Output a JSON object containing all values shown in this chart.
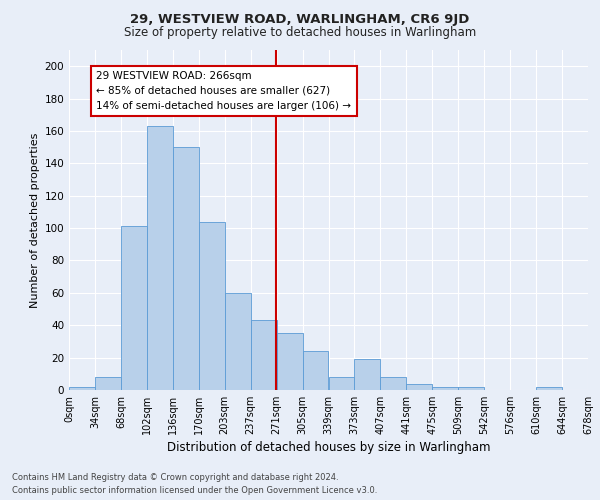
{
  "title1": "29, WESTVIEW ROAD, WARLINGHAM, CR6 9JD",
  "title2": "Size of property relative to detached houses in Warlingham",
  "xlabel": "Distribution of detached houses by size in Warlingham",
  "ylabel": "Number of detached properties",
  "bin_labels": [
    "0sqm",
    "34sqm",
    "68sqm",
    "102sqm",
    "136sqm",
    "170sqm",
    "203sqm",
    "237sqm",
    "271sqm",
    "305sqm",
    "339sqm",
    "373sqm",
    "407sqm",
    "441sqm",
    "475sqm",
    "509sqm",
    "542sqm",
    "576sqm",
    "610sqm",
    "644sqm",
    "678sqm"
  ],
  "bar_heights": [
    2,
    8,
    101,
    163,
    150,
    104,
    60,
    43,
    35,
    24,
    8,
    19,
    8,
    4,
    2,
    2,
    0,
    0,
    2,
    0
  ],
  "bar_color": "#b8d0ea",
  "bar_edge_color": "#5b9bd5",
  "annotation_title": "29 WESTVIEW ROAD: 266sqm",
  "annotation_line1": "← 85% of detached houses are smaller (627)",
  "annotation_line2": "14% of semi-detached houses are larger (106) →",
  "annotation_box_color": "#ffffff",
  "annotation_box_edge": "#cc0000",
  "vline_color": "#cc0000",
  "vline_x": 271,
  "ylim": [
    0,
    210
  ],
  "yticks": [
    0,
    20,
    40,
    60,
    80,
    100,
    120,
    140,
    160,
    180,
    200
  ],
  "footer1": "Contains HM Land Registry data © Crown copyright and database right 2024.",
  "footer2": "Contains public sector information licensed under the Open Government Licence v3.0.",
  "bg_color": "#e8eef8",
  "plot_bg_color": "#e8eef8",
  "grid_color": "#ffffff",
  "n_bins": 20,
  "bin_width": 34
}
